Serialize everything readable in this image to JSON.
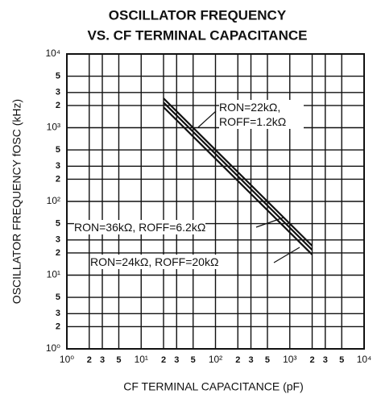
{
  "chart_data": {
    "type": "line",
    "title": "OSCILLATOR FREQUENCY",
    "subtitle": "VS. CF TERMINAL CAPACITANCE",
    "x_label": "CF TERMINAL CAPACITANCE (pF)",
    "y_label": "OSCILLATOR FREQUENCY fOSC (kHz)",
    "x": [
      20,
      2000
    ],
    "series": [
      {
        "name": "RON=22kΩ, ROFF=1.2kΩ",
        "color": "#111111",
        "values": [
          2500,
          25
        ]
      },
      {
        "name": "RON=36kΩ, ROFF=6.2kΩ",
        "color": "#111111",
        "values": [
          2200,
          22
        ]
      },
      {
        "name": "RON=24kΩ, ROFF=20kΩ",
        "color": "#111111",
        "values": [
          1900,
          19
        ]
      }
    ],
    "xlim": [
      1,
      10000
    ],
    "ylim": [
      1,
      10000
    ],
    "log_x": true,
    "log_y": true,
    "grid": true,
    "xticks": [
      {
        "value": 1,
        "label": "10⁰"
      },
      2,
      3,
      5,
      {
        "value": 10,
        "label": "10¹"
      },
      {
        "value": 20,
        "label": "2"
      },
      {
        "value": 30,
        "label": "3"
      },
      {
        "value": 50,
        "label": "5"
      },
      {
        "value": 100,
        "label": "10²"
      },
      {
        "value": 200,
        "label": "2"
      },
      {
        "value": 300,
        "label": "3"
      },
      {
        "value": 500,
        "label": "5"
      },
      {
        "value": 1000,
        "label": "10³"
      },
      {
        "value": 2000,
        "label": "2"
      },
      {
        "value": 3000,
        "label": "3"
      },
      {
        "value": 5000,
        "label": "5"
      },
      {
        "value": 10000,
        "label": "10⁴"
      }
    ],
    "yticks": [
      {
        "value": 1,
        "label": "10⁰"
      },
      2,
      3,
      5,
      {
        "value": 10,
        "label": "10¹"
      },
      {
        "value": 20,
        "label": "2"
      },
      {
        "value": 30,
        "label": "3"
      },
      {
        "value": 50,
        "label": "5"
      },
      {
        "value": 100,
        "label": "10²"
      },
      {
        "value": 200,
        "label": "2"
      },
      {
        "value": 300,
        "label": "3"
      },
      {
        "value": 500,
        "label": "5"
      },
      {
        "value": 1000,
        "label": "10³"
      },
      {
        "value": 2000,
        "label": "2"
      },
      {
        "value": 3000,
        "label": "3"
      },
      {
        "value": 5000,
        "label": "5"
      },
      {
        "value": 10000,
        "label": "10⁴"
      }
    ]
  }
}
